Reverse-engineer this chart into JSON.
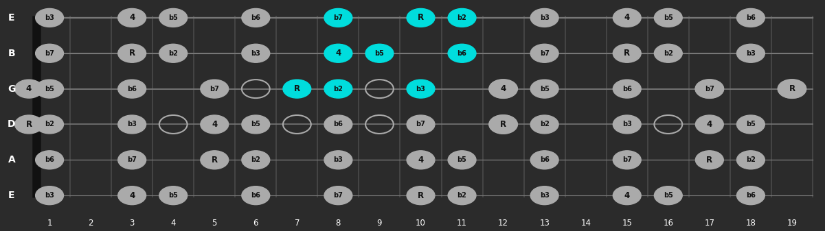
{
  "bg_color": "#2b2b2b",
  "fret_color": "#4a4a4a",
  "string_color": "#777777",
  "nut_color": "#111111",
  "note_gray": "#aaaaaa",
  "note_cyan": "#00dddd",
  "text_dark": "#111111",
  "text_white": "#ffffff",
  "notes": {
    "E_high": {
      "1": {
        "label": "b3",
        "type": "gray"
      },
      "3": {
        "label": "4",
        "type": "gray"
      },
      "4": {
        "label": "b5",
        "type": "gray"
      },
      "6": {
        "label": "b6",
        "type": "gray"
      },
      "8": {
        "label": "b7",
        "type": "cyan"
      },
      "10": {
        "label": "R",
        "type": "cyan"
      },
      "11": {
        "label": "b2",
        "type": "cyan"
      },
      "13": {
        "label": "b3",
        "type": "gray"
      },
      "15": {
        "label": "4",
        "type": "gray"
      },
      "16": {
        "label": "b5",
        "type": "gray"
      },
      "18": {
        "label": "b6",
        "type": "gray"
      }
    },
    "B": {
      "1": {
        "label": "b7",
        "type": "gray"
      },
      "3": {
        "label": "R",
        "type": "gray"
      },
      "4": {
        "label": "b2",
        "type": "gray"
      },
      "6": {
        "label": "b3",
        "type": "gray"
      },
      "8": {
        "label": "4",
        "type": "cyan"
      },
      "9": {
        "label": "b5",
        "type": "cyan"
      },
      "11": {
        "label": "b6",
        "type": "cyan"
      },
      "13": {
        "label": "b7",
        "type": "gray"
      },
      "15": {
        "label": "R",
        "type": "gray"
      },
      "16": {
        "label": "b2",
        "type": "gray"
      },
      "18": {
        "label": "b3",
        "type": "gray"
      }
    },
    "G": {
      "0": {
        "label": "4",
        "type": "gray"
      },
      "1": {
        "label": "b5",
        "type": "gray"
      },
      "3": {
        "label": "b6",
        "type": "gray"
      },
      "5": {
        "label": "b7",
        "type": "gray"
      },
      "7": {
        "label": "R",
        "type": "cyan"
      },
      "8": {
        "label": "b2",
        "type": "cyan"
      },
      "10": {
        "label": "b3",
        "type": "cyan"
      },
      "12": {
        "label": "4",
        "type": "gray"
      },
      "13": {
        "label": "b5",
        "type": "gray"
      },
      "15": {
        "label": "b6",
        "type": "gray"
      },
      "17": {
        "label": "b7",
        "type": "gray"
      },
      "19": {
        "label": "R",
        "type": "gray"
      }
    },
    "D": {
      "0": {
        "label": "R",
        "type": "gray"
      },
      "1": {
        "label": "b2",
        "type": "gray"
      },
      "3": {
        "label": "b3",
        "type": "gray"
      },
      "5": {
        "label": "4",
        "type": "gray"
      },
      "6": {
        "label": "b5",
        "type": "gray"
      },
      "8": {
        "label": "b6",
        "type": "gray"
      },
      "10": {
        "label": "b7",
        "type": "gray"
      },
      "12": {
        "label": "R",
        "type": "gray"
      },
      "13": {
        "label": "b2",
        "type": "gray"
      },
      "15": {
        "label": "b3",
        "type": "gray"
      },
      "17": {
        "label": "4",
        "type": "gray"
      },
      "18": {
        "label": "b5",
        "type": "gray"
      }
    },
    "A": {
      "1": {
        "label": "b6",
        "type": "gray"
      },
      "3": {
        "label": "b7",
        "type": "gray"
      },
      "5": {
        "label": "R",
        "type": "gray"
      },
      "6": {
        "label": "b2",
        "type": "gray"
      },
      "8": {
        "label": "b3",
        "type": "gray"
      },
      "10": {
        "label": "4",
        "type": "gray"
      },
      "11": {
        "label": "b5",
        "type": "gray"
      },
      "13": {
        "label": "b6",
        "type": "gray"
      },
      "15": {
        "label": "b7",
        "type": "gray"
      },
      "17": {
        "label": "R",
        "type": "gray"
      },
      "18": {
        "label": "b2",
        "type": "gray"
      }
    },
    "E_low": {
      "1": {
        "label": "b3",
        "type": "gray"
      },
      "3": {
        "label": "4",
        "type": "gray"
      },
      "4": {
        "label": "b5",
        "type": "gray"
      },
      "6": {
        "label": "b6",
        "type": "gray"
      },
      "8": {
        "label": "b7",
        "type": "gray"
      },
      "10": {
        "label": "R",
        "type": "gray"
      },
      "11": {
        "label": "b2",
        "type": "gray"
      },
      "13": {
        "label": "b3",
        "type": "gray"
      },
      "15": {
        "label": "4",
        "type": "gray"
      },
      "16": {
        "label": "b5",
        "type": "gray"
      },
      "18": {
        "label": "b6",
        "type": "gray"
      }
    }
  },
  "open_circles": [
    {
      "string": "G",
      "fret": 6
    },
    {
      "string": "G",
      "fret": 9
    },
    {
      "string": "G",
      "fret": 12
    },
    {
      "string": "G",
      "fret": 17
    },
    {
      "string": "G",
      "fret": 19
    },
    {
      "string": "D",
      "fret": 4
    },
    {
      "string": "D",
      "fret": 7
    },
    {
      "string": "D",
      "fret": 9
    },
    {
      "string": "D",
      "fret": 12
    },
    {
      "string": "D",
      "fret": 16
    }
  ]
}
